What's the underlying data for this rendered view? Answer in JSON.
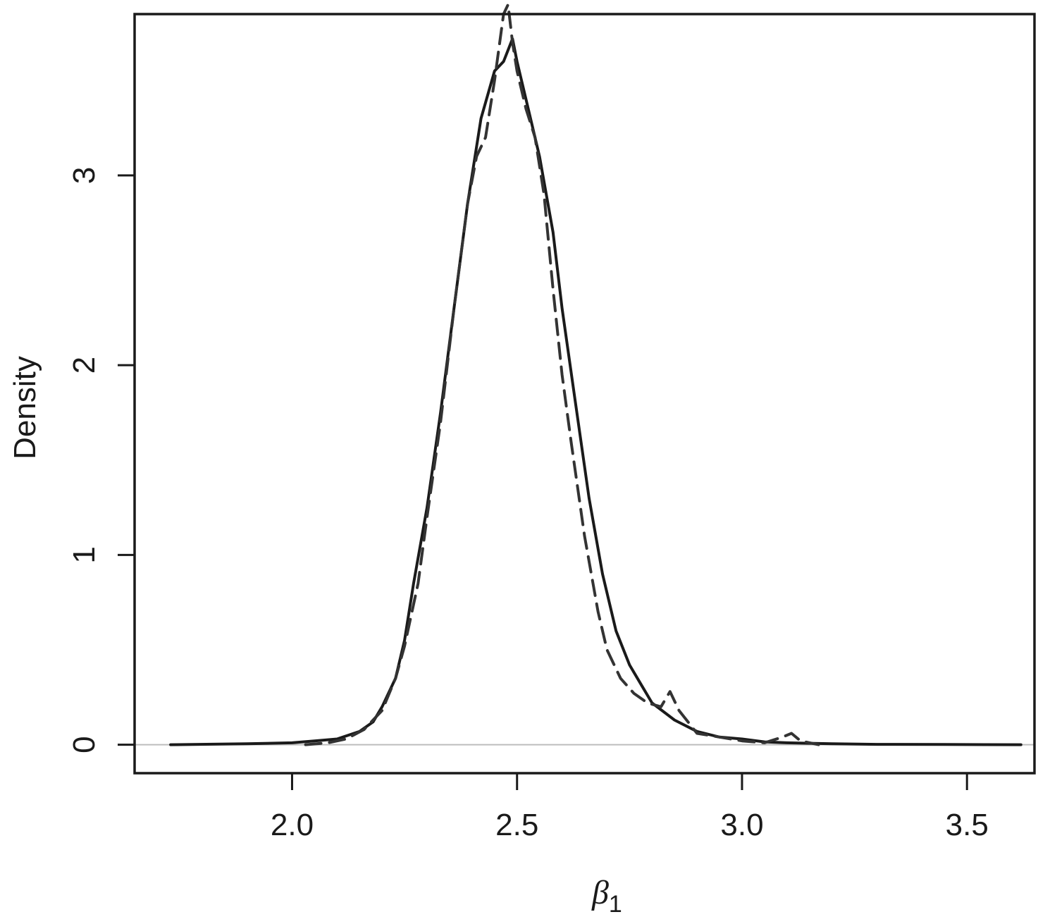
{
  "chart_data": {
    "type": "line",
    "title": "",
    "xlabel": "β1",
    "xlabel_main": "β",
    "xlabel_sub": "1",
    "ylabel": "Density",
    "xlim": [
      1.65,
      3.65
    ],
    "ylim": [
      -0.15,
      3.85
    ],
    "xticks": [
      2.0,
      2.5,
      3.0,
      3.5
    ],
    "xtick_labels": [
      "2.0",
      "2.5",
      "3.0",
      "3.5"
    ],
    "yticks": [
      0,
      1,
      2,
      3
    ],
    "ytick_labels": [
      "0",
      "1",
      "2",
      "3"
    ],
    "grid": false,
    "legend": "none",
    "baseline": {
      "y": 0,
      "color": "#bdbdbd"
    },
    "series": [
      {
        "style": "solid",
        "color": "#1a1a1a",
        "x": [
          1.73,
          1.9,
          2.0,
          2.05,
          2.1,
          2.15,
          2.18,
          2.2,
          2.23,
          2.25,
          2.27,
          2.3,
          2.33,
          2.36,
          2.39,
          2.42,
          2.45,
          2.47,
          2.49,
          2.5,
          2.52,
          2.55,
          2.58,
          2.6,
          2.63,
          2.66,
          2.69,
          2.72,
          2.75,
          2.78,
          2.8,
          2.85,
          2.9,
          2.95,
          3.0,
          3.05,
          3.1,
          3.2,
          3.3,
          3.45,
          3.62
        ],
        "y": [
          0,
          0.005,
          0.01,
          0.02,
          0.03,
          0.07,
          0.12,
          0.2,
          0.35,
          0.55,
          0.85,
          1.25,
          1.75,
          2.3,
          2.85,
          3.3,
          3.55,
          3.6,
          3.72,
          3.6,
          3.4,
          3.1,
          2.7,
          2.3,
          1.8,
          1.3,
          0.9,
          0.6,
          0.42,
          0.3,
          0.22,
          0.13,
          0.07,
          0.04,
          0.03,
          0.015,
          0.01,
          0.005,
          0.002,
          0.001,
          0
        ]
      },
      {
        "style": "dashed",
        "color": "#333333",
        "x": [
          2.03,
          2.08,
          2.12,
          2.16,
          2.2,
          2.23,
          2.25,
          2.28,
          2.3,
          2.33,
          2.36,
          2.39,
          2.41,
          2.43,
          2.45,
          2.47,
          2.48,
          2.49,
          2.5,
          2.52,
          2.54,
          2.56,
          2.58,
          2.6,
          2.62,
          2.65,
          2.68,
          2.7,
          2.73,
          2.76,
          2.79,
          2.82,
          2.84,
          2.86,
          2.9,
          2.95,
          3.0,
          3.05,
          3.09,
          3.11,
          3.13,
          3.17
        ],
        "y": [
          0,
          0.01,
          0.03,
          0.08,
          0.18,
          0.35,
          0.52,
          0.85,
          1.2,
          1.7,
          2.3,
          2.85,
          3.1,
          3.2,
          3.5,
          3.85,
          3.9,
          3.7,
          3.55,
          3.35,
          3.2,
          2.9,
          2.4,
          1.95,
          1.6,
          1.1,
          0.7,
          0.5,
          0.35,
          0.27,
          0.22,
          0.2,
          0.28,
          0.18,
          0.06,
          0.04,
          0.02,
          0.01,
          0.04,
          0.06,
          0.02,
          0
        ]
      }
    ]
  }
}
